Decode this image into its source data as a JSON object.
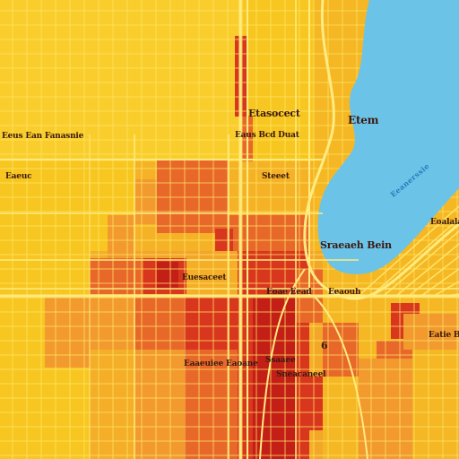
{
  "map": {
    "colors": {
      "base": "#f7c620",
      "grid": "#ffe566",
      "orange": "#f29a2e",
      "dark_orange": "#e8682a",
      "red": "#d9361e",
      "deep_red": "#c41f16",
      "water": "#6cc3e8"
    },
    "labels": {
      "top_center": "Etasocect",
      "top_right": "Etem",
      "left_upper": "Eeus Ean Fanasnie",
      "center_upper": "Eaus Bcd Duat",
      "left_mid": "Eaeuc",
      "water_label": "Eeanerssie",
      "right_mid": "Eoalala",
      "center_right": "Sraeaeh Bein",
      "center_left_small": "Steeet",
      "center_road": "Euesaceet",
      "center_bottom_road": "Eoae Eead",
      "right_small": "Eeaouh",
      "right_lower": "Eatie Baa",
      "lower_center": "Eaaeuiee Eaoane",
      "lower_small_1": "Ssaaee",
      "lower_small_2": "Sneacaneel",
      "marker": "6"
    }
  }
}
